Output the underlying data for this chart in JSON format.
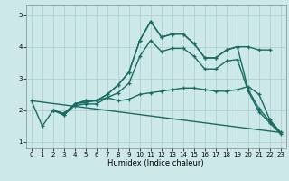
{
  "xlabel": "Humidex (Indice chaleur)",
  "bg_color": "#cce8e8",
  "line_color": "#1a6b62",
  "grid_color": "#aacccc",
  "xlim": [
    -0.5,
    23.5
  ],
  "ylim": [
    0.8,
    5.3
  ],
  "yticks": [
    1,
    2,
    3,
    4,
    5
  ],
  "xticks": [
    0,
    1,
    2,
    3,
    4,
    5,
    6,
    7,
    8,
    9,
    10,
    11,
    12,
    13,
    14,
    15,
    16,
    17,
    18,
    19,
    20,
    21,
    22,
    23
  ],
  "lines_data": [
    {
      "x": [
        0,
        23
      ],
      "y": [
        2.3,
        1.3
      ],
      "marker": "None",
      "lw": 1.0
    },
    {
      "x": [
        2,
        3,
        4,
        5,
        6,
        7,
        8,
        9,
        10,
        11,
        12,
        13,
        14,
        15,
        16,
        17,
        18,
        19,
        20,
        21,
        22
      ],
      "y": [
        2.0,
        1.9,
        2.2,
        2.3,
        2.3,
        2.5,
        2.8,
        3.2,
        4.2,
        4.8,
        4.3,
        4.4,
        4.4,
        4.1,
        3.65,
        3.65,
        3.9,
        4.0,
        4.0,
        3.9,
        3.9
      ],
      "marker": "+",
      "lw": 1.0
    },
    {
      "x": [
        2,
        3,
        4,
        5,
        6,
        7,
        8,
        9,
        10,
        11,
        12,
        13,
        14,
        15,
        16,
        17,
        18,
        19,
        20,
        21,
        22,
        23
      ],
      "y": [
        2.0,
        1.9,
        2.2,
        2.3,
        2.3,
        2.5,
        2.8,
        3.2,
        4.2,
        4.8,
        4.3,
        4.4,
        4.4,
        4.1,
        3.65,
        3.65,
        3.9,
        4.0,
        2.65,
        2.05,
        1.65,
        1.3
      ],
      "marker": "+",
      "lw": 1.0
    },
    {
      "x": [
        2,
        3,
        4,
        5,
        6,
        7,
        8,
        9,
        10,
        11,
        12,
        13,
        14,
        15,
        16,
        17,
        18,
        19,
        20,
        21,
        22,
        23
      ],
      "y": [
        2.0,
        1.85,
        2.15,
        2.2,
        2.2,
        2.4,
        2.55,
        2.85,
        3.7,
        4.2,
        3.85,
        3.95,
        3.95,
        3.7,
        3.3,
        3.3,
        3.55,
        3.6,
        2.6,
        1.95,
        1.6,
        1.25
      ],
      "marker": "+",
      "lw": 1.0
    },
    {
      "x": [
        0,
        1,
        2,
        3,
        4,
        5,
        6,
        7,
        8,
        9,
        10,
        11,
        12,
        13,
        14,
        15,
        16,
        17,
        18,
        19,
        20,
        21,
        22,
        23
      ],
      "y": [
        2.3,
        1.5,
        2.0,
        1.85,
        2.2,
        2.25,
        2.3,
        2.4,
        2.3,
        2.35,
        2.5,
        2.55,
        2.6,
        2.65,
        2.7,
        2.7,
        2.65,
        2.6,
        2.6,
        2.65,
        2.75,
        2.5,
        1.7,
        1.3
      ],
      "marker": "+",
      "lw": 1.0
    }
  ]
}
